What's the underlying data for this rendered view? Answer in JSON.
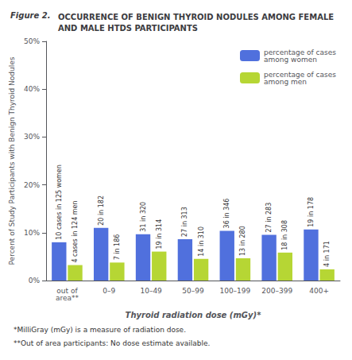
{
  "chart_data": {
    "type": "bar",
    "figure_label": "Figure 2.",
    "title": "OCCURRENCE OF BENIGN THYROID NODULES AMONG FEMALE\nAND MALE HTDS PARTICIPANTS",
    "xlabel": "Thyroid radiation dose (mGy)*",
    "ylabel": "Percent of Study Participants with Benign Thyroid Nodules",
    "categories": [
      "out of\narea**",
      "0–9",
      "10–49",
      "50–99",
      "100–199",
      "200–399",
      "400+"
    ],
    "series": [
      {
        "name": "percentage of cases\namong women",
        "values": [
          8.0,
          10.99,
          9.69,
          8.63,
          10.4,
          9.54,
          10.67
        ],
        "annotations": [
          "10 cases in 125 women",
          "20 in 182",
          "31 in 320",
          "27 in 313",
          "36 in 346",
          "27 in 283",
          "19 in 178"
        ]
      },
      {
        "name": "percentage of cases\namong men",
        "values": [
          3.23,
          3.76,
          6.05,
          4.52,
          4.64,
          5.84,
          2.34
        ],
        "annotations": [
          "4 cases in 124 men",
          "7 in 186",
          "19 in 314",
          "14 in 310",
          "13 in 280",
          "18 in 308",
          "4 in 171"
        ]
      }
    ],
    "ylim": [
      0,
      50
    ],
    "yticks": [
      {
        "value": 0,
        "label": "0%"
      },
      {
        "value": 10,
        "label": "10%"
      },
      {
        "value": 20,
        "label": "20%"
      },
      {
        "value": 30,
        "label": "30%"
      },
      {
        "value": 40,
        "label": "40%"
      },
      {
        "value": 50,
        "label": "50%"
      }
    ],
    "grid": false,
    "legend": "upper right",
    "footnotes": [
      "*MilliGray (mGy) is a measure of radiation dose.",
      "**Out of area participants: No dose estimate available."
    ]
  }
}
